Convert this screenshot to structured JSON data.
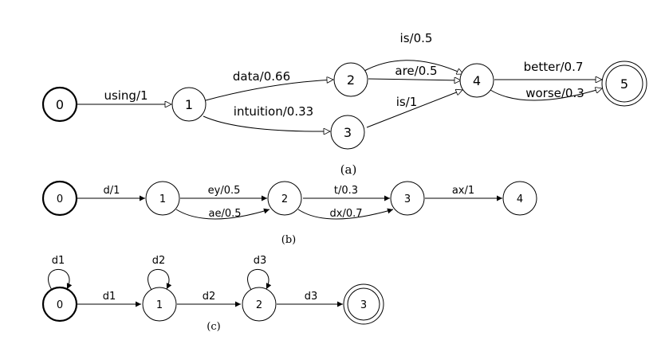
{
  "diagram_a": {
    "caption": "(a)",
    "states": [
      "0",
      "1",
      "2",
      "3",
      "4",
      "5"
    ],
    "transitions": [
      "using/1",
      "data/0.66",
      "intuition/0.33",
      "is/0.5",
      "are/0.5",
      "is/1",
      "better/0.7",
      "worse/0.3"
    ]
  },
  "diagram_b": {
    "caption": "(b)",
    "states": [
      "0",
      "1",
      "2",
      "3",
      "4"
    ],
    "transitions": [
      "d/1",
      "ey/0.5",
      "ae/0.5",
      "t/0.3",
      "dx/0.7",
      "ax/1"
    ]
  },
  "diagram_c": {
    "caption": "(c)",
    "states": [
      "0",
      "1",
      "2",
      "3"
    ],
    "self_loops": [
      "d1",
      "d2",
      "d3"
    ],
    "transitions": [
      "d1",
      "d2",
      "d3"
    ]
  }
}
